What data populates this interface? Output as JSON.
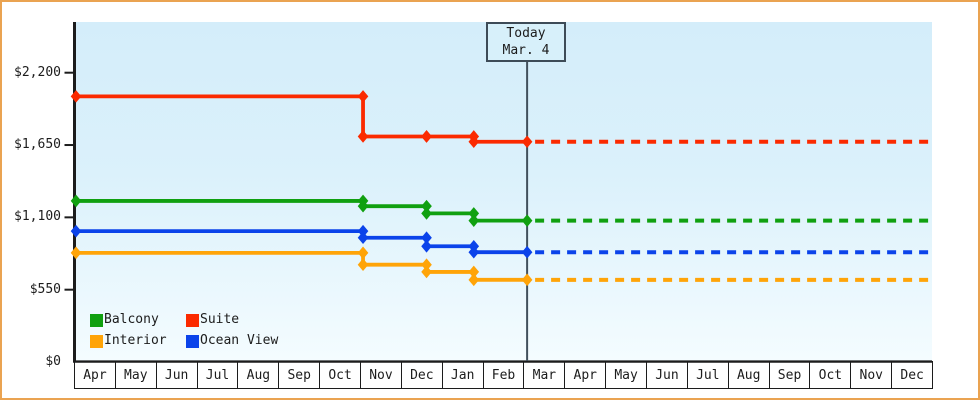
{
  "panel": {
    "border_color": "#eaa351",
    "plot_bg_top": "#d4edfa",
    "plot_bg_bottom": "#f4fcff",
    "axis_color": "#1c1c1c",
    "today_line_color": "#41505c"
  },
  "chart_data": {
    "type": "line",
    "subtype": "step-after-price-history",
    "title": "",
    "xlabel": "",
    "ylabel": "",
    "grid": false,
    "legend_position": "bottom-left",
    "ylim": [
      0,
      2600
    ],
    "y_ticks": [
      {
        "label": "$2,200",
        "value": 2200
      },
      {
        "label": "$1,650",
        "value": 1650
      },
      {
        "label": "$1,100",
        "value": 1100
      },
      {
        "label": "$550",
        "value": 550
      },
      {
        "label": "$0",
        "value": 0
      }
    ],
    "months": [
      "Apr",
      "May",
      "Jun",
      "Jul",
      "Aug",
      "Sep",
      "Oct",
      "Nov",
      "Dec",
      "Jan",
      "Feb",
      "Mar",
      "Apr",
      "May",
      "Jun",
      "Jul",
      "Aug",
      "Sep",
      "Oct",
      "Nov",
      "Dec"
    ],
    "today": {
      "label": "Today",
      "date": "Mar. 4",
      "month_offset": 11.08
    },
    "forecast_end_month_offset": 21,
    "series": [
      {
        "name": "Balcony",
        "color": "#10a010",
        "points": [
          {
            "month_offset": 0,
            "price": 1225
          },
          {
            "month_offset": 7.05,
            "price": 1185
          },
          {
            "month_offset": 8.61,
            "price": 1130
          },
          {
            "month_offset": 9.77,
            "price": 1075
          }
        ],
        "current_price": 1075
      },
      {
        "name": "Suite",
        "color": "#fb2a00",
        "points": [
          {
            "month_offset": 0,
            "price": 2020
          },
          {
            "month_offset": 7.05,
            "price": 1715
          },
          {
            "month_offset": 8.61,
            "price": 1715
          },
          {
            "month_offset": 9.77,
            "price": 1675
          }
        ],
        "current_price": 1675
      },
      {
        "name": "Interior",
        "color": "#ffa408",
        "points": [
          {
            "month_offset": 0,
            "price": 830
          },
          {
            "month_offset": 7.05,
            "price": 740
          },
          {
            "month_offset": 8.61,
            "price": 685
          },
          {
            "month_offset": 9.77,
            "price": 625
          }
        ],
        "current_price": 625
      },
      {
        "name": "Ocean View",
        "color": "#0b43ea",
        "points": [
          {
            "month_offset": 0,
            "price": 995
          },
          {
            "month_offset": 7.05,
            "price": 945
          },
          {
            "month_offset": 8.61,
            "price": 880
          },
          {
            "month_offset": 9.77,
            "price": 835
          }
        ],
        "current_price": 835
      }
    ]
  }
}
